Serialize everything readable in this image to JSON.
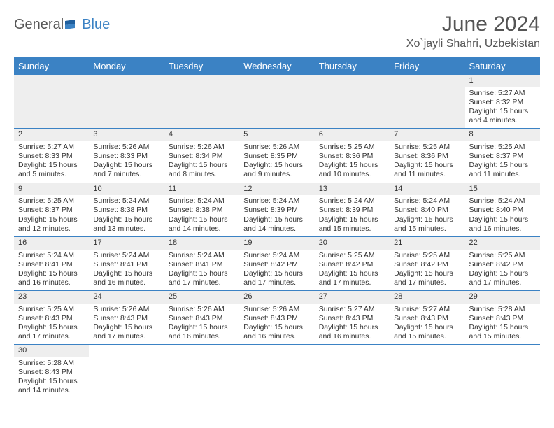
{
  "logo": {
    "part1": "General",
    "part2": "Blue"
  },
  "title": "June 2024",
  "location": "Xo`jayli Shahri, Uzbekistan",
  "colors": {
    "header_bg": "#3b82c4",
    "header_fg": "#ffffff",
    "daynum_bg": "#eeeeee",
    "border": "#3b82c4",
    "text": "#333333",
    "background": "#ffffff"
  },
  "weekdays": [
    "Sunday",
    "Monday",
    "Tuesday",
    "Wednesday",
    "Thursday",
    "Friday",
    "Saturday"
  ],
  "days": [
    {
      "n": 1,
      "sr": "5:27 AM",
      "ss": "8:32 PM",
      "dl": "15 hours and 4 minutes."
    },
    {
      "n": 2,
      "sr": "5:27 AM",
      "ss": "8:33 PM",
      "dl": "15 hours and 5 minutes."
    },
    {
      "n": 3,
      "sr": "5:26 AM",
      "ss": "8:33 PM",
      "dl": "15 hours and 7 minutes."
    },
    {
      "n": 4,
      "sr": "5:26 AM",
      "ss": "8:34 PM",
      "dl": "15 hours and 8 minutes."
    },
    {
      "n": 5,
      "sr": "5:26 AM",
      "ss": "8:35 PM",
      "dl": "15 hours and 9 minutes."
    },
    {
      "n": 6,
      "sr": "5:25 AM",
      "ss": "8:36 PM",
      "dl": "15 hours and 10 minutes."
    },
    {
      "n": 7,
      "sr": "5:25 AM",
      "ss": "8:36 PM",
      "dl": "15 hours and 11 minutes."
    },
    {
      "n": 8,
      "sr": "5:25 AM",
      "ss": "8:37 PM",
      "dl": "15 hours and 11 minutes."
    },
    {
      "n": 9,
      "sr": "5:25 AM",
      "ss": "8:37 PM",
      "dl": "15 hours and 12 minutes."
    },
    {
      "n": 10,
      "sr": "5:24 AM",
      "ss": "8:38 PM",
      "dl": "15 hours and 13 minutes."
    },
    {
      "n": 11,
      "sr": "5:24 AM",
      "ss": "8:38 PM",
      "dl": "15 hours and 14 minutes."
    },
    {
      "n": 12,
      "sr": "5:24 AM",
      "ss": "8:39 PM",
      "dl": "15 hours and 14 minutes."
    },
    {
      "n": 13,
      "sr": "5:24 AM",
      "ss": "8:39 PM",
      "dl": "15 hours and 15 minutes."
    },
    {
      "n": 14,
      "sr": "5:24 AM",
      "ss": "8:40 PM",
      "dl": "15 hours and 15 minutes."
    },
    {
      "n": 15,
      "sr": "5:24 AM",
      "ss": "8:40 PM",
      "dl": "15 hours and 16 minutes."
    },
    {
      "n": 16,
      "sr": "5:24 AM",
      "ss": "8:41 PM",
      "dl": "15 hours and 16 minutes."
    },
    {
      "n": 17,
      "sr": "5:24 AM",
      "ss": "8:41 PM",
      "dl": "15 hours and 16 minutes."
    },
    {
      "n": 18,
      "sr": "5:24 AM",
      "ss": "8:41 PM",
      "dl": "15 hours and 17 minutes."
    },
    {
      "n": 19,
      "sr": "5:24 AM",
      "ss": "8:42 PM",
      "dl": "15 hours and 17 minutes."
    },
    {
      "n": 20,
      "sr": "5:25 AM",
      "ss": "8:42 PM",
      "dl": "15 hours and 17 minutes."
    },
    {
      "n": 21,
      "sr": "5:25 AM",
      "ss": "8:42 PM",
      "dl": "15 hours and 17 minutes."
    },
    {
      "n": 22,
      "sr": "5:25 AM",
      "ss": "8:42 PM",
      "dl": "15 hours and 17 minutes."
    },
    {
      "n": 23,
      "sr": "5:25 AM",
      "ss": "8:43 PM",
      "dl": "15 hours and 17 minutes."
    },
    {
      "n": 24,
      "sr": "5:26 AM",
      "ss": "8:43 PM",
      "dl": "15 hours and 17 minutes."
    },
    {
      "n": 25,
      "sr": "5:26 AM",
      "ss": "8:43 PM",
      "dl": "15 hours and 16 minutes."
    },
    {
      "n": 26,
      "sr": "5:26 AM",
      "ss": "8:43 PM",
      "dl": "15 hours and 16 minutes."
    },
    {
      "n": 27,
      "sr": "5:27 AM",
      "ss": "8:43 PM",
      "dl": "15 hours and 16 minutes."
    },
    {
      "n": 28,
      "sr": "5:27 AM",
      "ss": "8:43 PM",
      "dl": "15 hours and 15 minutes."
    },
    {
      "n": 29,
      "sr": "5:28 AM",
      "ss": "8:43 PM",
      "dl": "15 hours and 15 minutes."
    },
    {
      "n": 30,
      "sr": "5:28 AM",
      "ss": "8:43 PM",
      "dl": "15 hours and 14 minutes."
    }
  ],
  "labels": {
    "sunrise_prefix": "Sunrise: ",
    "sunset_prefix": "Sunset: ",
    "daylight_prefix": "Daylight: "
  },
  "layout": {
    "first_weekday_index": 6,
    "trailing_blanks": 6
  }
}
